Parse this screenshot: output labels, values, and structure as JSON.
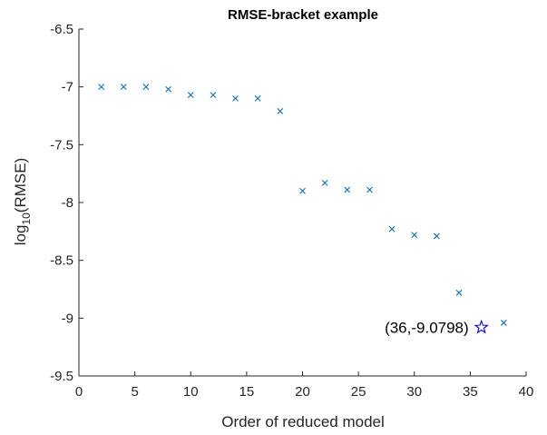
{
  "chart_data": {
    "type": "scatter",
    "title": "RMSE-bracket example",
    "xlabel": "Order of reduced model",
    "ylabel_main": "log",
    "ylabel_sub": "10",
    "ylabel_tail": "(RMSE)",
    "xlim": [
      0,
      40
    ],
    "ylim": [
      -9.5,
      -6.5
    ],
    "xticks": [
      0,
      5,
      10,
      15,
      20,
      25,
      30,
      35,
      40
    ],
    "xtick_labels": [
      "0",
      "5",
      "10",
      "15",
      "20",
      "25",
      "30",
      "35",
      "40"
    ],
    "yticks": [
      -6.5,
      -7,
      -7.5,
      -8,
      -8.5,
      -9,
      -9.5
    ],
    "ytick_labels": [
      "-6.5",
      "-7",
      "-7.5",
      "-8",
      "-8.5",
      "-9",
      "-9.5"
    ],
    "grid": false,
    "series": [
      {
        "marker": "x",
        "color": "#0072BD",
        "x": [
          2,
          4,
          6,
          8,
          10,
          12,
          14,
          16,
          18,
          20,
          22,
          24,
          26,
          28,
          30,
          32,
          34,
          38
        ],
        "y": [
          -7.0,
          -7.0,
          -7.0,
          -7.02,
          -7.07,
          -7.07,
          -7.1,
          -7.1,
          -7.21,
          -7.9,
          -7.83,
          -7.89,
          -7.89,
          -8.23,
          -8.28,
          -8.29,
          -8.78,
          -9.04
        ]
      },
      {
        "marker": "pentagram",
        "color": "#0000FF",
        "x": [
          36
        ],
        "y": [
          -9.0798
        ]
      }
    ],
    "annotations": [
      {
        "text": "(36,-9.0798)",
        "x": 36,
        "y": -9.0798,
        "anchor": "left-of-point"
      }
    ]
  }
}
